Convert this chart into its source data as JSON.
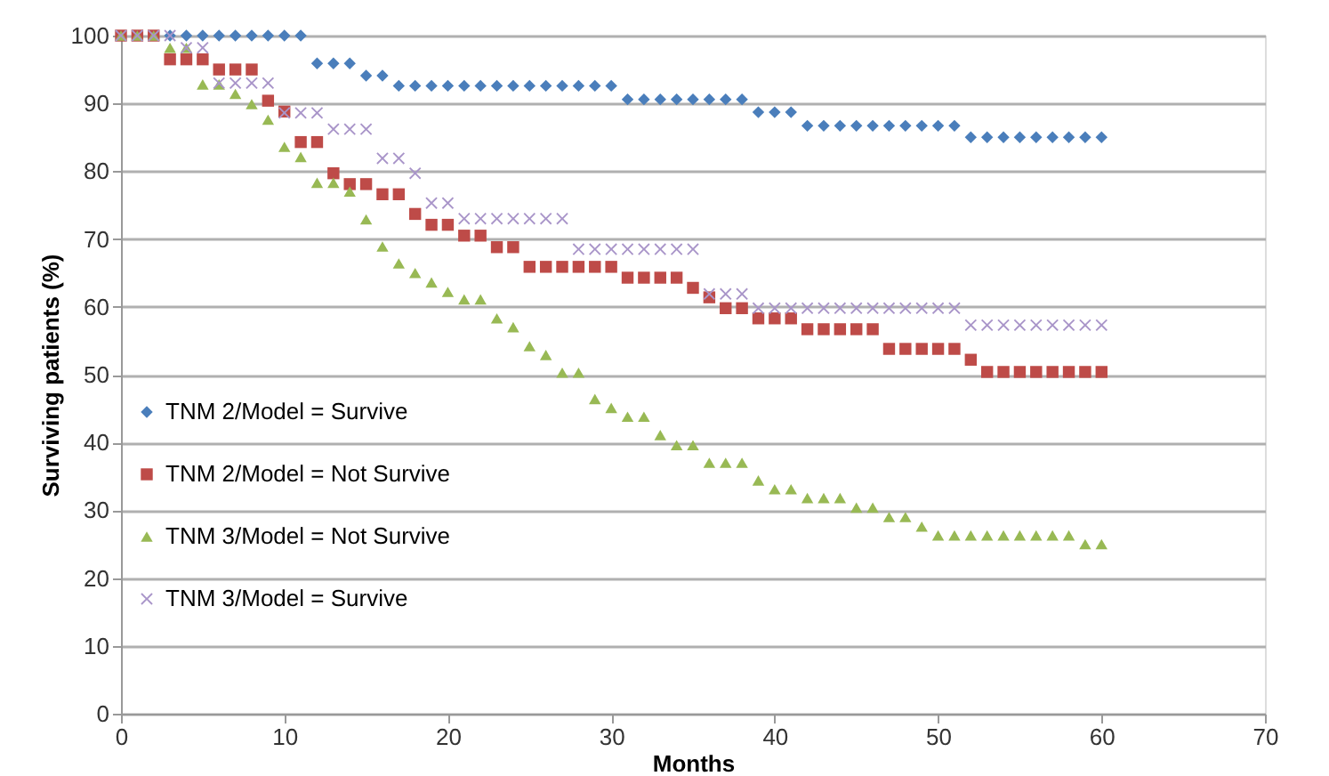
{
  "chart_data": {
    "type": "scatter",
    "xlabel": "Months",
    "ylabel": "Surviving patients (%)",
    "x": [
      0,
      1,
      2,
      3,
      4,
      5,
      6,
      7,
      8,
      9,
      10,
      11,
      12,
      13,
      14,
      15,
      16,
      17,
      18,
      19,
      20,
      21,
      22,
      23,
      24,
      25,
      26,
      27,
      28,
      29,
      30,
      31,
      32,
      33,
      34,
      35,
      36,
      37,
      38,
      39,
      40,
      41,
      42,
      43,
      44,
      45,
      46,
      47,
      48,
      49,
      50,
      51,
      52,
      53,
      54,
      55,
      56,
      57,
      58,
      59,
      60
    ],
    "series": [
      {
        "name": "TNM 2/Model = Survive",
        "color": "#4a7ebb",
        "marker": "diamond",
        "values": [
          null,
          null,
          null,
          100,
          100,
          100,
          100,
          100,
          100,
          100,
          100,
          100,
          95.9,
          95.9,
          95.9,
          94.1,
          94.1,
          92.6,
          92.6,
          92.6,
          92.6,
          92.6,
          92.6,
          92.6,
          92.6,
          92.6,
          92.6,
          92.6,
          92.6,
          92.6,
          92.6,
          90.6,
          90.6,
          90.6,
          90.6,
          90.6,
          90.6,
          90.6,
          90.6,
          88.7,
          88.7,
          88.7,
          86.7,
          86.7,
          86.7,
          86.7,
          86.7,
          86.7,
          86.7,
          86.7,
          86.7,
          86.7,
          85.0,
          85.0,
          85.0,
          85.0,
          85.0,
          85.0,
          85.0,
          85.0,
          85.0
        ]
      },
      {
        "name": "TNM 2/Model = Not Survive",
        "color": "#be4b48",
        "marker": "square",
        "values": [
          100,
          100,
          100,
          96.5,
          96.5,
          96.5,
          95.0,
          95.0,
          95.0,
          90.4,
          88.8,
          84.3,
          84.3,
          79.7,
          78.1,
          78.1,
          76.6,
          76.6,
          73.7,
          72.1,
          72.1,
          70.5,
          70.5,
          68.8,
          68.8,
          65.9,
          65.9,
          65.9,
          65.9,
          65.9,
          65.9,
          64.3,
          64.3,
          64.3,
          64.3,
          62.8,
          61.4,
          59.8,
          59.8,
          58.3,
          58.3,
          58.3,
          56.7,
          56.7,
          56.7,
          56.7,
          56.7,
          53.8,
          53.8,
          53.8,
          53.8,
          53.8,
          52.2,
          50.4,
          50.4,
          50.4,
          50.4,
          50.4,
          50.4,
          50.4,
          50.4
        ]
      },
      {
        "name": "TNM 3/Model = Not Survive",
        "color": "#98b954",
        "marker": "triangle",
        "values": [
          100,
          100,
          100,
          98.2,
          98.2,
          92.8,
          92.8,
          91.4,
          89.9,
          87.6,
          83.6,
          82.1,
          78.3,
          78.3,
          77.0,
          72.9,
          68.9,
          66.4,
          65.0,
          63.6,
          62.2,
          61.1,
          61.1,
          58.3,
          57.0,
          54.2,
          52.9,
          50.3,
          50.3,
          46.4,
          45.1,
          43.8,
          43.8,
          41.1,
          39.6,
          39.6,
          37.0,
          37.0,
          37.0,
          34.4,
          33.1,
          33.1,
          31.8,
          31.8,
          31.8,
          30.4,
          30.4,
          29.0,
          29.0,
          27.6,
          26.3,
          26.3,
          26.3,
          26.3,
          26.3,
          26.3,
          26.3,
          26.3,
          26.3,
          25.0,
          25.0
        ]
      },
      {
        "name": "TNM 3/Model = Survive",
        "color": "#a995c9",
        "marker": "cross",
        "values": [
          100,
          100,
          100,
          100,
          98.2,
          98.2,
          93.0,
          93.0,
          93.0,
          93.0,
          88.6,
          88.6,
          88.6,
          86.2,
          86.2,
          86.2,
          81.9,
          81.9,
          79.7,
          75.3,
          75.3,
          73.0,
          73.0,
          73.0,
          73.0,
          73.0,
          73.0,
          73.0,
          68.5,
          68.5,
          68.5,
          68.5,
          68.5,
          68.5,
          68.5,
          68.5,
          61.9,
          61.9,
          61.9,
          59.8,
          59.8,
          59.8,
          59.8,
          59.8,
          59.8,
          59.8,
          59.8,
          59.8,
          59.8,
          59.8,
          59.8,
          59.8,
          57.3,
          57.3,
          57.3,
          57.3,
          57.3,
          57.3,
          57.3,
          57.3,
          57.3
        ]
      }
    ],
    "xlim": [
      0,
      70
    ],
    "xticks": [
      0,
      10,
      20,
      30,
      40,
      50,
      60,
      70
    ],
    "ylim": [
      0,
      100
    ],
    "yticks": [
      0,
      10,
      20,
      30,
      40,
      50,
      60,
      70,
      80,
      90,
      100
    ],
    "grid": "y",
    "legend": "left"
  }
}
